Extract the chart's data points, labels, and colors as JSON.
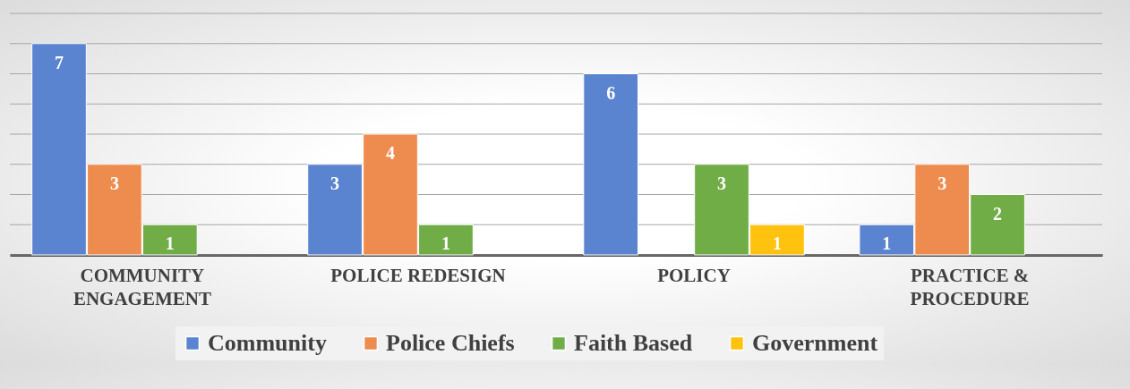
{
  "chart_data": {
    "type": "bar",
    "categories": [
      "COMMUNITY ENGAGEMENT",
      "POLICE REDESIGN",
      "POLICY",
      "PRACTICE & PROCEDURE"
    ],
    "series": [
      {
        "name": "Community",
        "color": "#5b84d0",
        "values": [
          7,
          3,
          6,
          1
        ]
      },
      {
        "name": "Police Chiefs",
        "color": "#ee8c4f",
        "values": [
          3,
          4,
          null,
          3
        ]
      },
      {
        "name": "Faith Based",
        "color": "#70ad47",
        "values": [
          1,
          1,
          3,
          2
        ]
      },
      {
        "name": "Government",
        "color": "#ffc20e",
        "values": [
          null,
          null,
          1,
          null
        ]
      }
    ],
    "ylim": [
      0,
      8
    ],
    "yticks": [
      {
        "value": 0,
        "label": null
      },
      {
        "value": 1,
        "label": null
      },
      {
        "value": 2,
        "label": null
      },
      {
        "value": 3,
        "label": null
      },
      {
        "value": 4,
        "label": null
      },
      {
        "value": 5,
        "label": null
      },
      {
        "value": 6,
        "label": null
      },
      {
        "value": 7,
        "label": null
      },
      {
        "value": 8,
        "label": null
      }
    ],
    "tick_labels": "x",
    "grid": "y",
    "data_labels": true,
    "legend": "bottom"
  }
}
